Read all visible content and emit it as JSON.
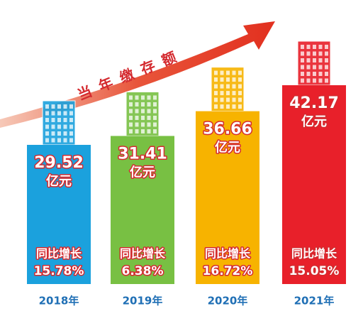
{
  "chart_data": {
    "type": "bar",
    "title": "当年缴存额",
    "categories": [
      "2018年",
      "2019年",
      "2020年",
      "2021年"
    ],
    "values": [
      29.52,
      31.41,
      36.66,
      42.17
    ],
    "unit": "亿元",
    "colors": [
      "#1ba1dd",
      "#78c043",
      "#f7b300",
      "#e8202a"
    ],
    "growth": {
      "name": "同比增长",
      "values": [
        15.78,
        6.38,
        16.72,
        15.05
      ],
      "value_labels": [
        "15.78%",
        "6.38%",
        "16.72%",
        "15.05%"
      ]
    }
  }
}
